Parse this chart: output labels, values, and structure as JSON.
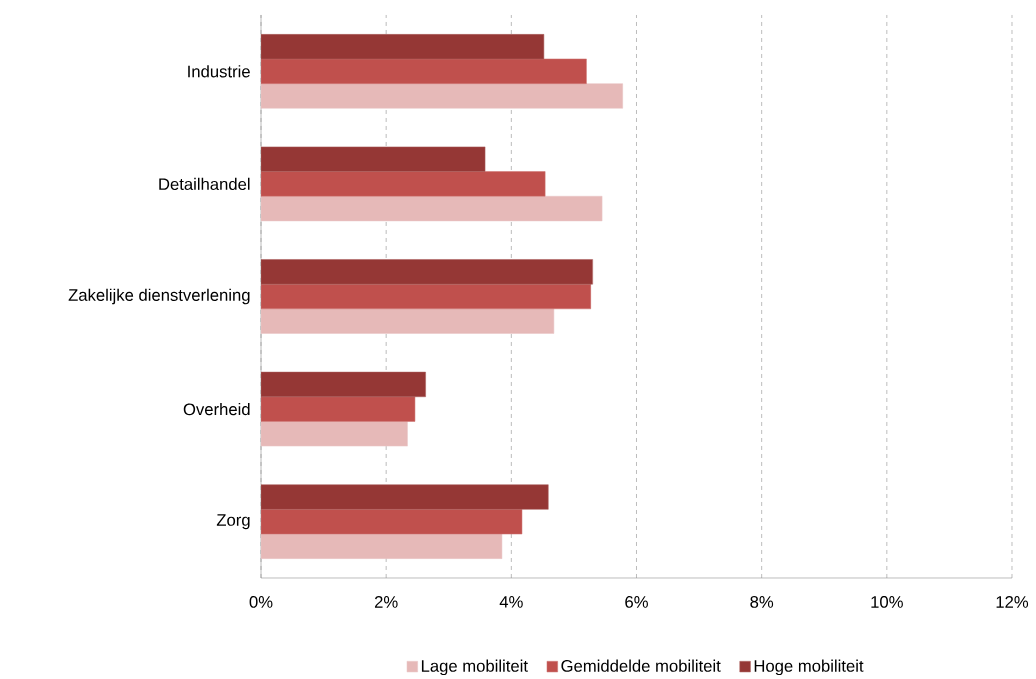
{
  "chart_data": {
    "type": "bar",
    "orientation": "horizontal",
    "categories": [
      "Industrie",
      "Detailhandel",
      "Zakelijke dienstverlening",
      "Overheid",
      "Zorg"
    ],
    "series": [
      {
        "name": "Lage mobiliteit",
        "color": "#e6b9b8",
        "values": [
          5.78,
          5.45,
          4.68,
          2.34,
          3.85
        ]
      },
      {
        "name": "Gemiddelde mobiliteit",
        "color": "#c0504d",
        "values": [
          5.2,
          4.54,
          5.27,
          2.46,
          4.17
        ]
      },
      {
        "name": "Hoge mobiliteit",
        "color": "#953735",
        "values": [
          4.52,
          3.58,
          5.3,
          2.63,
          4.59
        ]
      }
    ],
    "xlim": [
      0,
      12
    ],
    "xticks": [
      {
        "value": 0,
        "label": "0%"
      },
      {
        "value": 2,
        "label": "2%"
      },
      {
        "value": 4,
        "label": "4%"
      },
      {
        "value": 6,
        "label": "6%"
      },
      {
        "value": 8,
        "label": "8%"
      },
      {
        "value": 10,
        "label": "10%"
      },
      {
        "value": 12,
        "label": "12%"
      }
    ],
    "grid": "x",
    "legend": "bottom"
  }
}
